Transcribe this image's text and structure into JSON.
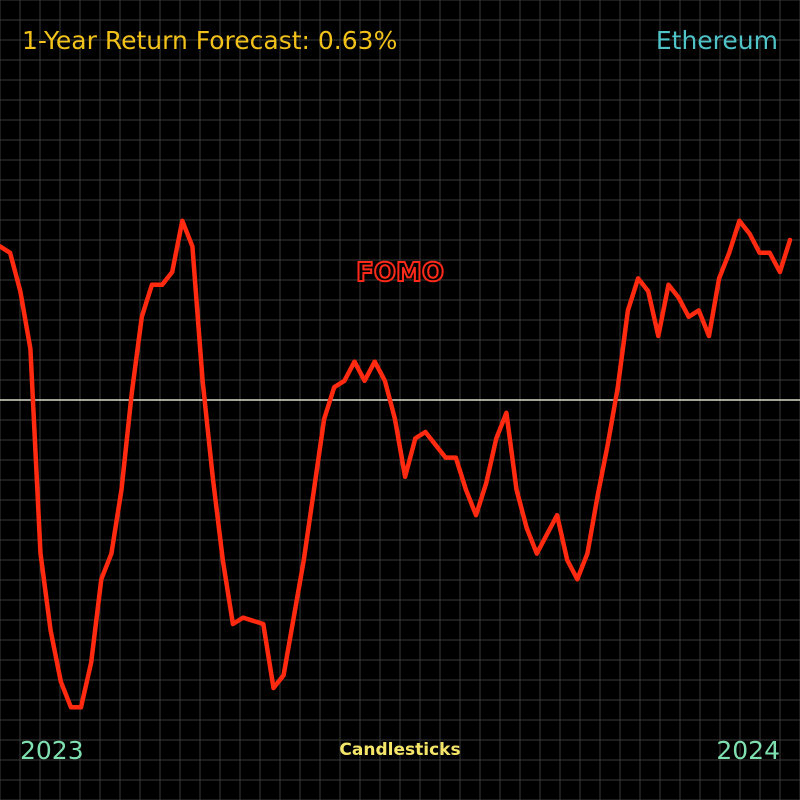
{
  "header": {
    "title": "1-Year Return Forecast: 0.63%",
    "asset": "Ethereum"
  },
  "footer": {
    "label": "Candlesticks",
    "start_year": "2023",
    "end_year": "2024"
  },
  "colors": {
    "background": "#000000",
    "grid": "#3a3a3a",
    "line": "#ff2a10",
    "baseline": "#d8d8c8",
    "title": "#f2c21b",
    "asset": "#4fc3c8",
    "years": "#7fe0b0",
    "footer": "#f5e66a"
  },
  "chart_data": {
    "type": "line",
    "title": "1-Year Return Forecast: 0.63%",
    "xlabel": "",
    "ylabel": "",
    "grid": true,
    "baseline": 0,
    "ylim": [
      -1.25,
      1.25
    ],
    "annotations": [
      {
        "text": "FOMO",
        "x": 40,
        "y": 0.5
      }
    ],
    "x_tick_labels": [
      "2023",
      "2024"
    ],
    "series": [
      {
        "values": [
          0.48,
          0.46,
          0.34,
          0.16,
          -0.48,
          -0.72,
          -0.88,
          -0.96,
          -0.96,
          -0.82,
          -0.56,
          -0.48,
          -0.28,
          0.02,
          0.26,
          0.36,
          0.36,
          0.4,
          0.56,
          0.48,
          0.06,
          -0.24,
          -0.5,
          -0.7,
          -0.68,
          -0.69,
          -0.7,
          -0.9,
          -0.86,
          -0.68,
          -0.5,
          -0.28,
          -0.06,
          0.04,
          0.06,
          0.12,
          0.06,
          0.12,
          0.06,
          -0.06,
          -0.24,
          -0.12,
          -0.1,
          -0.14,
          -0.18,
          -0.18,
          -0.28,
          -0.36,
          -0.26,
          -0.12,
          -0.04,
          -0.28,
          -0.4,
          -0.48,
          -0.42,
          -0.36,
          -0.5,
          -0.56,
          -0.48,
          -0.3,
          -0.14,
          0.04,
          0.28,
          0.38,
          0.34,
          0.2,
          0.36,
          0.32,
          0.26,
          0.28,
          0.2,
          0.38,
          0.46,
          0.56,
          0.52,
          0.46,
          0.46,
          0.4,
          0.5
        ]
      }
    ]
  }
}
